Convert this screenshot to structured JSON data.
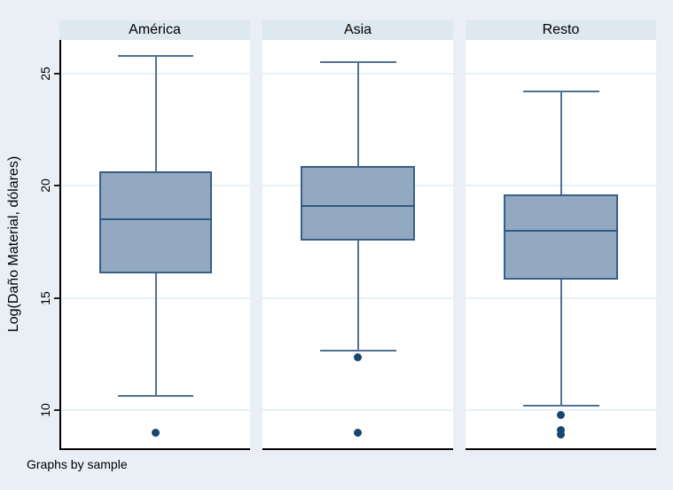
{
  "caption": "Graphs by sample",
  "colors": {
    "page_bg": "#e9eff4",
    "strip_bg": "#dde8f0",
    "plot_bg": "#ffffff",
    "grid_color": "#e8f1f6",
    "box_fill": "#93a9c2",
    "box_border": "#3a5f85",
    "whisker_color": "#4f7291",
    "median_color": "#2d5a80",
    "dot_color": "#1a476f",
    "axis_color": "#000000"
  },
  "chart_data": {
    "type": "box",
    "ylabel": "Log(Daño Material, dólares)",
    "note": "Graphs by sample",
    "ylim": [
      8.3,
      26.5
    ],
    "yticks": [
      10,
      15,
      20,
      25
    ],
    "grid": true,
    "panel_titles_position": "top",
    "groups": [
      {
        "label": "América",
        "upper_whisker": 25.8,
        "q3": 20.65,
        "median": 18.5,
        "q1": 16.1,
        "lower_whisker": 10.65,
        "outliers": [
          9.0
        ]
      },
      {
        "label": "Asia",
        "upper_whisker": 25.5,
        "q3": 20.9,
        "median": 19.1,
        "q1": 17.55,
        "lower_whisker": 12.65,
        "outliers": [
          12.35,
          9.0
        ]
      },
      {
        "label": "Resto",
        "upper_whisker": 24.2,
        "q3": 19.6,
        "median": 18.0,
        "q1": 15.8,
        "lower_whisker": 10.2,
        "outliers": [
          9.8,
          9.1,
          8.9
        ]
      }
    ]
  }
}
